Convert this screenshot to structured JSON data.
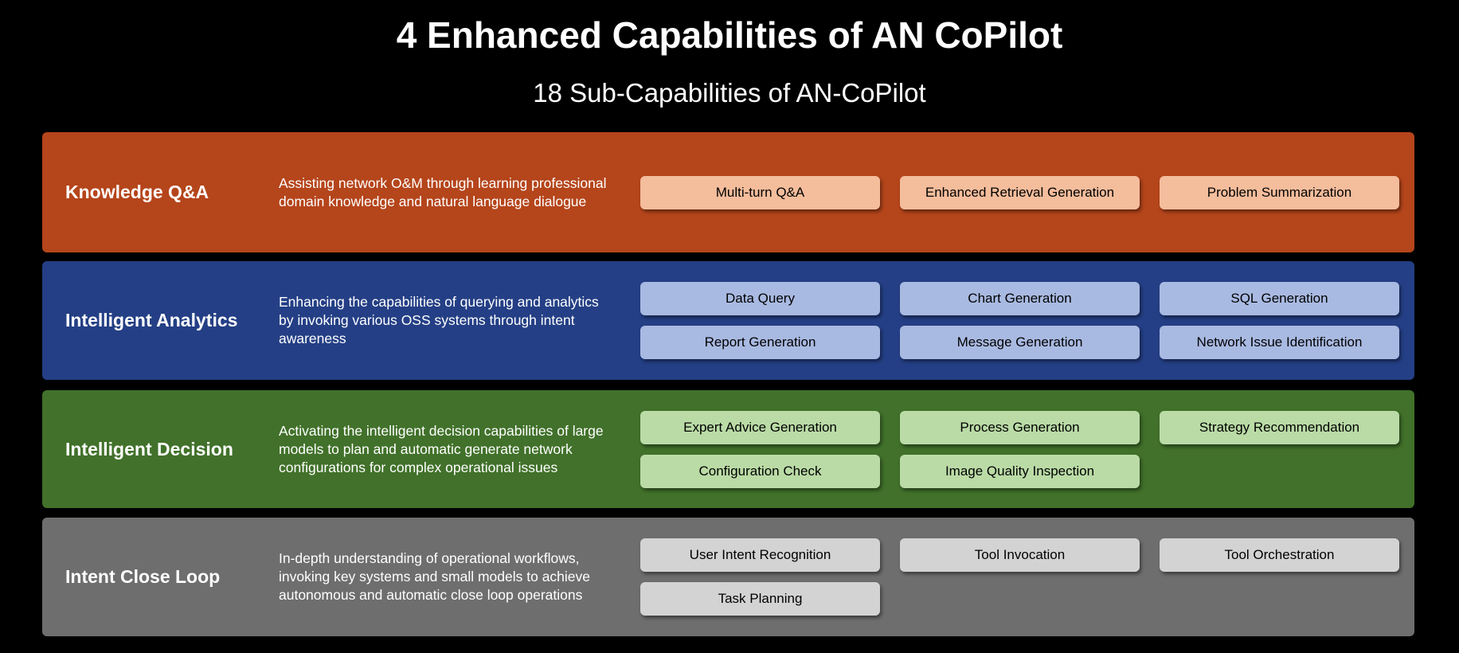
{
  "title": "4 Enhanced Capabilities of AN CoPilot",
  "subtitle": "18 Sub-Capabilities of AN-CoPilot",
  "panels": [
    {
      "label": "Knowledge Q&A",
      "description": "Assisting network O&M through learning professional domain knowledge and natural language dialogue",
      "color": "#B5451B",
      "chip_color": "#F4BD9C",
      "chips": [
        "Multi-turn Q&A",
        "Enhanced Retrieval Generation",
        "Problem Summarization"
      ]
    },
    {
      "label": "Intelligent Analytics",
      "description": "Enhancing the capabilities of querying and analytics by invoking various OSS systems through intent awareness",
      "color": "#243F85",
      "chip_color": "#A9BAE2",
      "chips": [
        "Data Query",
        "Chart Generation",
        "SQL Generation",
        "Report Generation",
        "Message Generation",
        "Network Issue Identification"
      ]
    },
    {
      "label": "Intelligent Decision",
      "description": "Activating the intelligent decision capabilities of large models to plan and automatic generate network configurations for complex operational issues",
      "color": "#41712A",
      "chip_color": "#BADBA6",
      "chips": [
        "Expert Advice Generation",
        "Process Generation",
        "Strategy Recommendation",
        "Configuration Check",
        "Image Quality Inspection"
      ]
    },
    {
      "label": "Intent Close Loop",
      "description": "In-depth understanding of operational workflows, invoking key systems and small models to achieve autonomous and automatic close loop operations",
      "color": "#6E6E6E",
      "chip_color": "#D3D3D3",
      "chips": [
        "User Intent Recognition",
        "Tool Invocation",
        "Tool Orchestration",
        "Task Planning"
      ]
    }
  ]
}
